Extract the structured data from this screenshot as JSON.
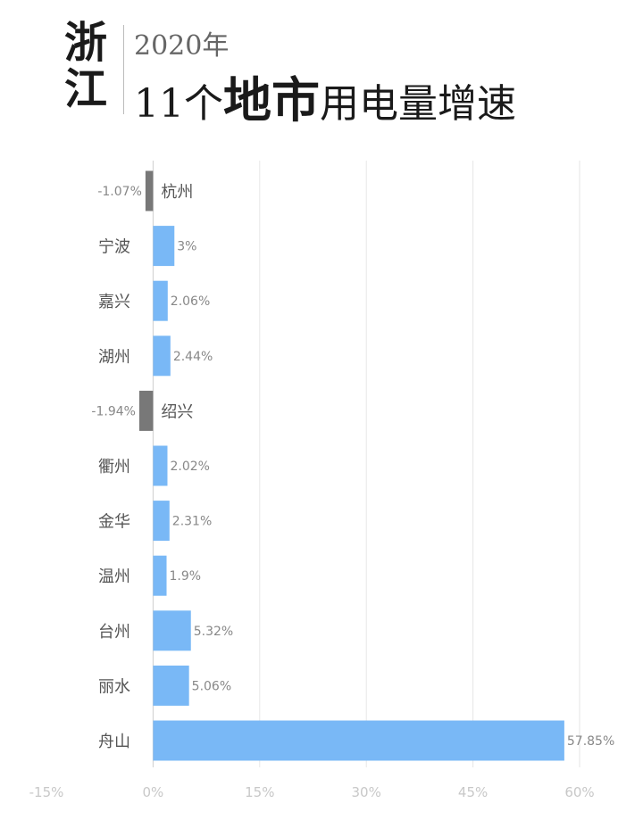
{
  "header": {
    "province": "浙江",
    "year": "2020年",
    "title_pre": "11个",
    "title_bold": "地市",
    "title_post": "用电量增速"
  },
  "chart_data": {
    "type": "bar",
    "orientation": "horizontal",
    "categories": [
      "杭州",
      "宁波",
      "嘉兴",
      "湖州",
      "绍兴",
      "衢州",
      "金华",
      "温州",
      "台州",
      "丽水",
      "舟山"
    ],
    "values": [
      -1.07,
      3,
      2.06,
      2.44,
      -1.94,
      2.02,
      2.31,
      1.9,
      5.32,
      5.06,
      57.85
    ],
    "value_labels": [
      "-1.07%",
      "3%",
      "2.06%",
      "2.44%",
      "-1.94%",
      "2.02%",
      "2.31%",
      "1.9%",
      "5.32%",
      "5.06%",
      "57.85%"
    ],
    "xlim": [
      -15,
      60
    ],
    "xticks": [
      -15,
      0,
      15,
      30,
      45,
      60
    ],
    "xtick_labels": [
      "-15%",
      "0%",
      "15%",
      "30%",
      "45%",
      "60%"
    ],
    "grid": true,
    "colors": {
      "positive": "#79b8f6",
      "negative": "#787878",
      "grid": "#e6e6e6",
      "label": "#888888",
      "category": "#555555"
    }
  }
}
